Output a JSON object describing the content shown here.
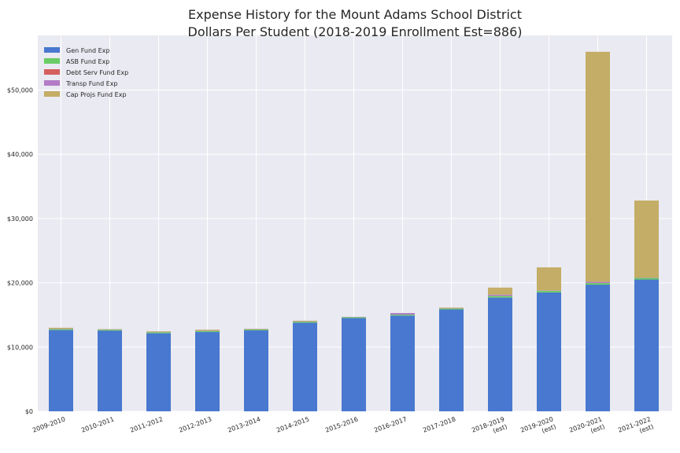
{
  "chart_data": {
    "type": "bar",
    "stacked": true,
    "title": "Expense History for the Mount Adams School District",
    "subtitle": "Dollars Per Student (2018-2019 Enrollment Est=886)",
    "xlabel": "",
    "ylabel": "",
    "ylim": [
      0,
      58500
    ],
    "yticks": [
      0,
      10000,
      20000,
      30000,
      40000,
      50000
    ],
    "ytick_labels": [
      "$0",
      "$10,000",
      "$20,000",
      "$30,000",
      "$40,000",
      "$50,000"
    ],
    "grid": true,
    "legend_position": "top-left",
    "categories": [
      "2009-2010",
      "2010-2011",
      "2011-2012",
      "2012-2013",
      "2013-2014",
      "2014-2015",
      "2015-2016",
      "2016-2017",
      "2017-2018",
      "2018-2019\n(est)",
      "2019-2020\n(est)",
      "2020-2021\n(est)",
      "2021-2022\n(est)"
    ],
    "series": [
      {
        "name": "Gen Fund Exp",
        "color": "#4878cf",
        "values": [
          12650,
          12550,
          12150,
          12350,
          12600,
          13800,
          14500,
          14900,
          15850,
          17700,
          18500,
          19700,
          20500
        ]
      },
      {
        "name": "ASB Fund Exp",
        "color": "#6acc65",
        "values": [
          150,
          150,
          150,
          150,
          150,
          150,
          150,
          150,
          150,
          250,
          250,
          250,
          250
        ]
      },
      {
        "name": "Debt Serv Fund Exp",
        "color": "#d65f5f",
        "values": [
          0,
          0,
          0,
          0,
          0,
          0,
          0,
          0,
          0,
          0,
          0,
          0,
          0
        ]
      },
      {
        "name": "Transp Fund Exp",
        "color": "#b47cc7",
        "values": [
          50,
          50,
          50,
          50,
          50,
          50,
          50,
          250,
          50,
          200,
          50,
          200,
          50
        ]
      },
      {
        "name": "Cap Projs Fund Exp",
        "color": "#c4ad66",
        "values": [
          150,
          50,
          100,
          150,
          50,
          100,
          0,
          0,
          100,
          1100,
          3600,
          35800,
          12000
        ]
      }
    ]
  }
}
